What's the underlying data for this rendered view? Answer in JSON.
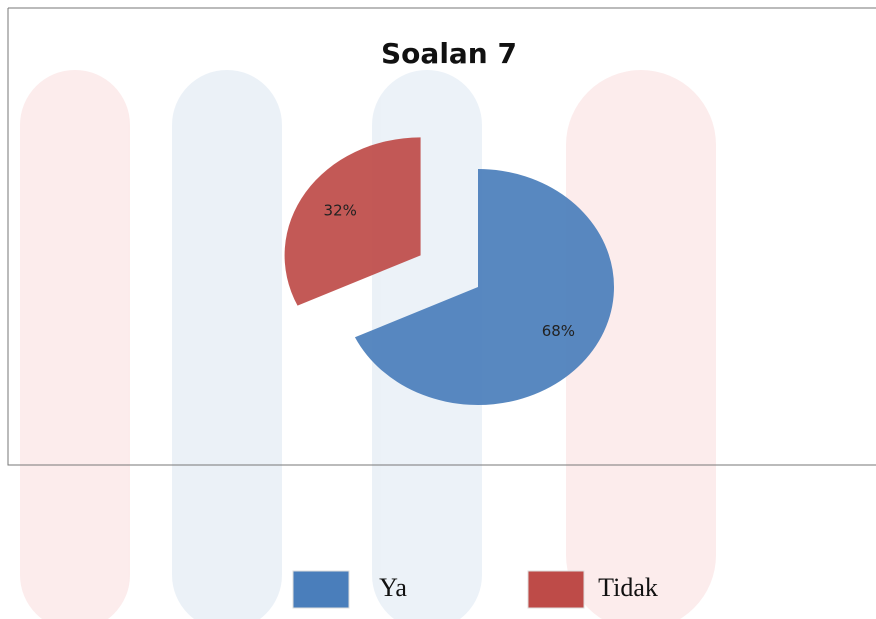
{
  "chart_data": {
    "type": "pie",
    "title": "Soalan 7",
    "categories": [
      "Ya",
      "Tidak"
    ],
    "values": [
      68,
      32
    ],
    "value_labels": [
      "68%",
      "32%"
    ],
    "colors": [
      "#4a7ebb",
      "#be4b48"
    ],
    "legend": "bottom"
  }
}
